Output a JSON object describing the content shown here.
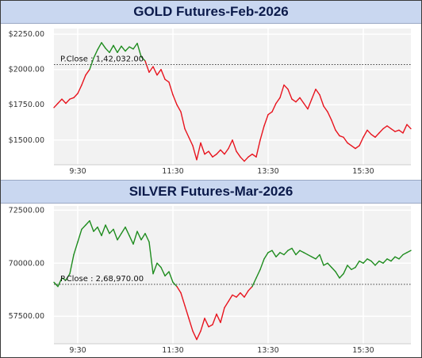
{
  "chart_data": [
    {
      "type": "line",
      "title": "GOLD Futures-Feb-2026",
      "x_ticks": [
        "9:30",
        "11:30",
        "13:30",
        "15:30"
      ],
      "y_ticks": [
        "$2250.00",
        "$2000.00",
        "$1750.00",
        "$1500.00"
      ],
      "ylim": [
        1325,
        2290
      ],
      "xlim": [
        "09:00",
        "16:30"
      ],
      "grid": true,
      "reference_line": {
        "label": "P.Close : 1,42,032.00",
        "value": 2035
      },
      "series": [
        {
          "color_above": "#1e8c1e",
          "color_below": "#e8141e",
          "points": [
            [
              "09:00",
              1730
            ],
            [
              "09:05",
              1760
            ],
            [
              "09:10",
              1790
            ],
            [
              "09:15",
              1760
            ],
            [
              "09:20",
              1790
            ],
            [
              "09:25",
              1800
            ],
            [
              "09:30",
              1830
            ],
            [
              "09:35",
              1890
            ],
            [
              "09:40",
              1960
            ],
            [
              "09:45",
              2000
            ],
            [
              "09:50",
              2080
            ],
            [
              "09:55",
              2140
            ],
            [
              "10:00",
              2190
            ],
            [
              "10:05",
              2150
            ],
            [
              "10:10",
              2120
            ],
            [
              "10:15",
              2170
            ],
            [
              "10:20",
              2120
            ],
            [
              "10:25",
              2165
            ],
            [
              "10:30",
              2130
            ],
            [
              "10:35",
              2160
            ],
            [
              "10:40",
              2145
            ],
            [
              "10:45",
              2185
            ],
            [
              "10:50",
              2090
            ],
            [
              "10:55",
              2060
            ],
            [
              "11:00",
              1980
            ],
            [
              "11:05",
              2020
            ],
            [
              "11:10",
              1960
            ],
            [
              "11:15",
              2000
            ],
            [
              "11:20",
              1930
            ],
            [
              "11:25",
              1910
            ],
            [
              "11:30",
              1820
            ],
            [
              "11:35",
              1750
            ],
            [
              "11:40",
              1700
            ],
            [
              "11:45",
              1580
            ],
            [
              "11:50",
              1520
            ],
            [
              "11:55",
              1460
            ],
            [
              "12:00",
              1360
            ],
            [
              "12:05",
              1480
            ],
            [
              "12:10",
              1400
            ],
            [
              "12:15",
              1420
            ],
            [
              "12:20",
              1380
            ],
            [
              "12:25",
              1400
            ],
            [
              "12:30",
              1430
            ],
            [
              "12:35",
              1400
            ],
            [
              "12:40",
              1440
            ],
            [
              "12:45",
              1500
            ],
            [
              "12:50",
              1420
            ],
            [
              "12:55",
              1380
            ],
            [
              "13:00",
              1350
            ],
            [
              "13:05",
              1380
            ],
            [
              "13:10",
              1400
            ],
            [
              "13:15",
              1380
            ],
            [
              "13:20",
              1500
            ],
            [
              "13:25",
              1600
            ],
            [
              "13:30",
              1680
            ],
            [
              "13:35",
              1700
            ],
            [
              "13:40",
              1760
            ],
            [
              "13:45",
              1800
            ],
            [
              "13:50",
              1890
            ],
            [
              "13:55",
              1860
            ],
            [
              "14:00",
              1790
            ],
            [
              "14:05",
              1770
            ],
            [
              "14:10",
              1800
            ],
            [
              "14:15",
              1760
            ],
            [
              "14:20",
              1720
            ],
            [
              "14:25",
              1790
            ],
            [
              "14:30",
              1860
            ],
            [
              "14:35",
              1820
            ],
            [
              "14:40",
              1740
            ],
            [
              "14:45",
              1700
            ],
            [
              "14:50",
              1640
            ],
            [
              "14:55",
              1570
            ],
            [
              "15:00",
              1530
            ],
            [
              "15:05",
              1520
            ],
            [
              "15:10",
              1480
            ],
            [
              "15:15",
              1460
            ],
            [
              "15:20",
              1440
            ],
            [
              "15:25",
              1460
            ],
            [
              "15:30",
              1520
            ],
            [
              "15:35",
              1570
            ],
            [
              "15:40",
              1540
            ],
            [
              "15:45",
              1520
            ],
            [
              "15:50",
              1550
            ],
            [
              "15:55",
              1580
            ],
            [
              "16:00",
              1600
            ],
            [
              "16:05",
              1580
            ],
            [
              "16:10",
              1560
            ],
            [
              "16:15",
              1570
            ],
            [
              "16:20",
              1550
            ],
            [
              "16:25",
              1610
            ],
            [
              "16:30",
              1580
            ]
          ]
        }
      ]
    },
    {
      "type": "line",
      "title": "SILVER Futures-Mar-2026",
      "x_ticks": [
        "9:30",
        "11:30",
        "13:30",
        "15:30"
      ],
      "y_ticks": [
        "72500.00",
        "70000.00",
        "57500.00"
      ],
      "ylim": [
        66200,
        72700
      ],
      "xlim": [
        "09:00",
        "16:30"
      ],
      "grid": true,
      "reference_line": {
        "label": "P.Close : 2,68,970.00",
        "value": 69000
      },
      "series": [
        {
          "color_above": "#1e8c1e",
          "color_below": "#e8141e",
          "points": [
            [
              "09:00",
              69100
            ],
            [
              "09:05",
              68900
            ],
            [
              "09:10",
              69300
            ],
            [
              "09:15",
              69200
            ],
            [
              "09:20",
              69500
            ],
            [
              "09:25",
              70400
            ],
            [
              "09:30",
              71000
            ],
            [
              "09:35",
              71600
            ],
            [
              "09:40",
              71800
            ],
            [
              "09:45",
              72000
            ],
            [
              "09:50",
              71500
            ],
            [
              "09:55",
              71700
            ],
            [
              "10:00",
              71300
            ],
            [
              "10:05",
              71800
            ],
            [
              "10:10",
              71400
            ],
            [
              "10:15",
              71600
            ],
            [
              "10:20",
              71100
            ],
            [
              "10:25",
              71400
            ],
            [
              "10:30",
              71700
            ],
            [
              "10:35",
              71300
            ],
            [
              "10:40",
              70900
            ],
            [
              "10:45",
              71500
            ],
            [
              "10:50",
              71100
            ],
            [
              "10:55",
              71400
            ],
            [
              "11:00",
              71000
            ],
            [
              "11:05",
              69500
            ],
            [
              "11:10",
              70000
            ],
            [
              "11:15",
              69800
            ],
            [
              "11:20",
              69400
            ],
            [
              "11:25",
              69600
            ],
            [
              "11:30",
              69100
            ],
            [
              "11:35",
              68900
            ],
            [
              "11:40",
              68600
            ],
            [
              "11:45",
              68000
            ],
            [
              "11:50",
              67400
            ],
            [
              "11:55",
              66800
            ],
            [
              "12:00",
              66400
            ],
            [
              "12:05",
              66800
            ],
            [
              "12:10",
              67400
            ],
            [
              "12:15",
              67000
            ],
            [
              "12:20",
              67100
            ],
            [
              "12:25",
              67600
            ],
            [
              "12:30",
              67200
            ],
            [
              "12:35",
              67900
            ],
            [
              "12:40",
              68200
            ],
            [
              "12:45",
              68500
            ],
            [
              "12:50",
              68400
            ],
            [
              "12:55",
              68600
            ],
            [
              "13:00",
              68400
            ],
            [
              "13:05",
              68700
            ],
            [
              "13:10",
              68900
            ],
            [
              "13:15",
              69300
            ],
            [
              "13:20",
              69700
            ],
            [
              "13:25",
              70200
            ],
            [
              "13:30",
              70500
            ],
            [
              "13:35",
              70600
            ],
            [
              "13:40",
              70300
            ],
            [
              "13:45",
              70500
            ],
            [
              "13:50",
              70400
            ],
            [
              "13:55",
              70600
            ],
            [
              "14:00",
              70700
            ],
            [
              "14:05",
              70400
            ],
            [
              "14:10",
              70600
            ],
            [
              "14:15",
              70500
            ],
            [
              "14:20",
              70400
            ],
            [
              "14:25",
              70300
            ],
            [
              "14:30",
              70200
            ],
            [
              "14:35",
              70400
            ],
            [
              "14:40",
              69900
            ],
            [
              "14:45",
              70000
            ],
            [
              "14:50",
              69800
            ],
            [
              "14:55",
              69600
            ],
            [
              "15:00",
              69300
            ],
            [
              "15:05",
              69500
            ],
            [
              "15:10",
              69900
            ],
            [
              "15:15",
              69700
            ],
            [
              "15:20",
              69800
            ],
            [
              "15:25",
              70100
            ],
            [
              "15:30",
              70000
            ],
            [
              "15:35",
              70200
            ],
            [
              "15:40",
              70100
            ],
            [
              "15:45",
              69900
            ],
            [
              "15:50",
              70100
            ],
            [
              "15:55",
              70000
            ],
            [
              "16:00",
              70200
            ],
            [
              "16:05",
              70100
            ],
            [
              "16:10",
              70300
            ],
            [
              "16:15",
              70200
            ],
            [
              "16:20",
              70400
            ],
            [
              "16:25",
              70500
            ],
            [
              "16:30",
              70600
            ]
          ]
        }
      ]
    }
  ]
}
